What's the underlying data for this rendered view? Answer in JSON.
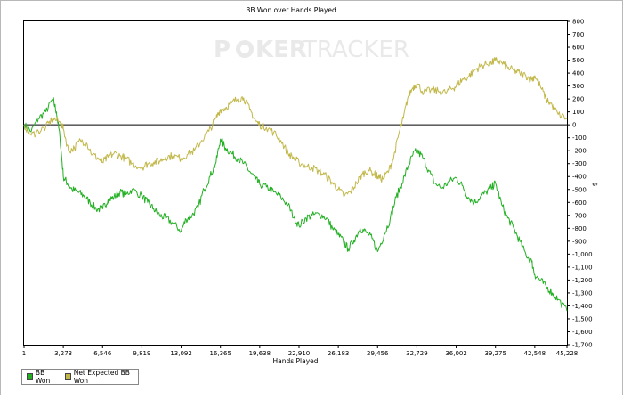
{
  "watermark": {
    "text_left": "P",
    "text_mid": "KER",
    "text_right": "TRACKER",
    "color": "#e9e9e9"
  },
  "chart_data": {
    "type": "line",
    "title": "BB Won over Hands Played",
    "xlabel": "Hands Played",
    "ylabel": "",
    "xlim": [
      1,
      45228
    ],
    "ylim": [
      -1700,
      800
    ],
    "x_ticks": [
      1,
      3273,
      6546,
      9819,
      13092,
      16365,
      19638,
      22910,
      26183,
      29456,
      32729,
      36002,
      39275,
      42548,
      45228
    ],
    "x_tick_labels": [
      "1",
      "3,273",
      "6,546",
      "9,819",
      "13,092",
      "16,365",
      "19,638",
      "22,910",
      "26,183",
      "29,456",
      "32,729",
      "36,002",
      "39,275",
      "42,548",
      "45,228"
    ],
    "y_ticks": [
      800,
      700,
      600,
      500,
      400,
      300,
      200,
      100,
      0,
      -100,
      -200,
      -300,
      -400,
      -500,
      -600,
      -700,
      -800,
      -900,
      -1000,
      -1100,
      -1200,
      -1300,
      -1400,
      -1500,
      -1600,
      -1700
    ],
    "y_tick_labels": [
      "800",
      "700",
      "600",
      "500",
      "400",
      "300",
      "200",
      "100",
      "0",
      "-100",
      "-200",
      "-300",
      "-400",
      "-500",
      "-600",
      "-700",
      "-800",
      "-900",
      "-1,000",
      "-1,100",
      "-1,200",
      "-1,300",
      "-1,400",
      "-1,500",
      "-1,600",
      "-1,700"
    ],
    "y_unit_label": "$",
    "grid": false,
    "legend_position": "bottom-left",
    "series": [
      {
        "name": "BB Won",
        "color": "#22b022",
        "x": [
          1,
          600,
          1200,
          1800,
          2400,
          2700,
          3000,
          3273,
          3600,
          4000,
          4500,
          5000,
          5500,
          6000,
          6546,
          7000,
          7500,
          8000,
          8500,
          9000,
          9819,
          10300,
          10800,
          11300,
          11800,
          12400,
          13092,
          13500,
          14000,
          14500,
          15000,
          15500,
          16000,
          16365,
          16800,
          17300,
          17800,
          18300,
          18800,
          19300,
          19638,
          20200,
          20800,
          21400,
          22000,
          22500,
          22910,
          23500,
          24000,
          24600,
          25200,
          25700,
          26183,
          26600,
          27000,
          27500,
          28000,
          28500,
          29000,
          29456,
          30000,
          30500,
          31000,
          31500,
          32000,
          32400,
          32729,
          33200,
          33700,
          34200,
          34800,
          35400,
          36002,
          36500,
          37000,
          37500,
          38000,
          38500,
          39000,
          39275,
          39800,
          40300,
          40800,
          41300,
          41800,
          42300,
          42548,
          43000,
          43500,
          44000,
          44500,
          45228
        ],
        "y": [
          0,
          -50,
          50,
          100,
          200,
          100,
          -100,
          -400,
          -450,
          -500,
          -520,
          -550,
          -600,
          -650,
          -650,
          -580,
          -560,
          -520,
          -540,
          -500,
          -550,
          -600,
          -650,
          -700,
          -720,
          -760,
          -820,
          -730,
          -700,
          -640,
          -500,
          -400,
          -290,
          -110,
          -180,
          -220,
          -260,
          -300,
          -360,
          -420,
          -460,
          -480,
          -520,
          -560,
          -620,
          -720,
          -780,
          -720,
          -700,
          -690,
          -720,
          -800,
          -850,
          -900,
          -960,
          -890,
          -800,
          -830,
          -880,
          -980,
          -850,
          -730,
          -560,
          -450,
          -320,
          -230,
          -200,
          -250,
          -350,
          -450,
          -490,
          -440,
          -410,
          -470,
          -560,
          -600,
          -560,
          -520,
          -480,
          -450,
          -620,
          -720,
          -800,
          -900,
          -1000,
          -1060,
          -1160,
          -1200,
          -1250,
          -1300,
          -1350,
          -1440
        ]
      },
      {
        "name": "Net Expected BB Won",
        "color": "#c2b84a",
        "x": [
          1,
          600,
          1200,
          1800,
          2400,
          3000,
          3273,
          3700,
          4200,
          4700,
          5200,
          5700,
          6200,
          6546,
          7000,
          7500,
          8000,
          8500,
          9000,
          9819,
          10300,
          10800,
          11300,
          11800,
          12400,
          13092,
          13600,
          14200,
          14800,
          15400,
          16000,
          16365,
          16800,
          17300,
          17800,
          18300,
          18800,
          19300,
          19638,
          20200,
          20800,
          21400,
          22000,
          22500,
          22910,
          23500,
          24000,
          24600,
          25200,
          25700,
          26183,
          26700,
          27200,
          27700,
          28200,
          28700,
          29200,
          29456,
          29900,
          30400,
          30800,
          31200,
          31600,
          32000,
          32400,
          32729,
          33300,
          33900,
          34500,
          35100,
          35700,
          36002,
          36500,
          37000,
          37500,
          38000,
          38500,
          39000,
          39275,
          39800,
          40300,
          40800,
          41300,
          41800,
          42300,
          42548,
          43000,
          43500,
          44000,
          44500,
          45228
        ],
        "y": [
          0,
          -80,
          -50,
          -20,
          50,
          20,
          -30,
          -200,
          -180,
          -120,
          -140,
          -230,
          -260,
          -290,
          -250,
          -220,
          -240,
          -260,
          -300,
          -330,
          -300,
          -290,
          -280,
          -250,
          -240,
          -260,
          -230,
          -200,
          -120,
          -50,
          50,
          120,
          130,
          170,
          200,
          210,
          120,
          30,
          0,
          -20,
          -60,
          -120,
          -220,
          -260,
          -290,
          -320,
          -330,
          -360,
          -400,
          -450,
          -500,
          -550,
          -520,
          -450,
          -380,
          -350,
          -380,
          -400,
          -420,
          -350,
          -250,
          -80,
          50,
          220,
          290,
          320,
          250,
          270,
          260,
          250,
          280,
          300,
          350,
          370,
          420,
          450,
          470,
          480,
          500,
          480,
          440,
          420,
          400,
          380,
          350,
          380,
          300,
          200,
          150,
          80,
          50
        ]
      }
    ]
  }
}
